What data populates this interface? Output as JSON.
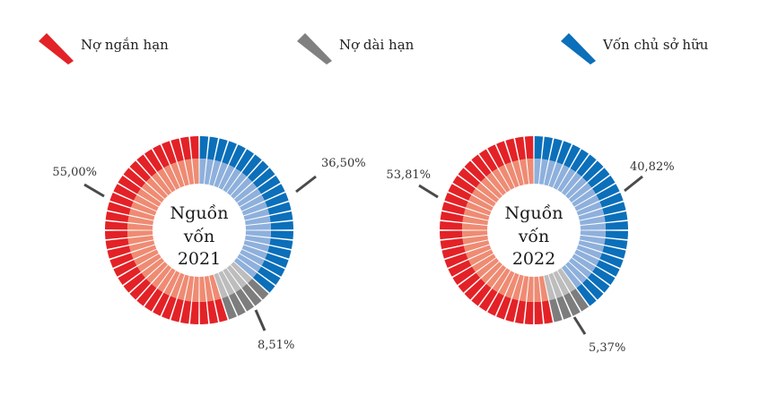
{
  "legend": [
    {
      "label": "Nợ ngắn hạn",
      "color": "#e32227"
    },
    {
      "label": "Nợ dài hạn",
      "color": "#808080"
    },
    {
      "label": "Vốn chủ sở hữu",
      "color": "#0b6fba"
    }
  ],
  "colors": {
    "red_outer": "#e32227",
    "red_inner": "#ef8b73",
    "gray_outer": "#7d7d7d",
    "gray_inner": "#bdbdbd",
    "blue_outer": "#0b6fba",
    "blue_inner": "#8eb0dc"
  },
  "chart_data": [
    {
      "type": "pie",
      "center_label": [
        "Nguồn",
        "vốn",
        "2021"
      ],
      "categories": [
        "Vốn chủ sở hữu",
        "Nợ dài hạn",
        "Nợ ngắn hạn"
      ],
      "values": [
        36.5,
        8.51,
        55.0
      ],
      "data_labels": [
        "36,50%",
        "8,51%",
        "55,00%"
      ]
    },
    {
      "type": "pie",
      "center_label": [
        "Nguồn",
        "vốn",
        "2022"
      ],
      "categories": [
        "Vốn chủ sở hữu",
        "Nợ dài hạn",
        "Nợ ngắn hạn"
      ],
      "values": [
        40.82,
        5.37,
        53.81
      ],
      "data_labels": [
        "40,82%",
        "5,37%",
        "53,81%"
      ]
    }
  ]
}
